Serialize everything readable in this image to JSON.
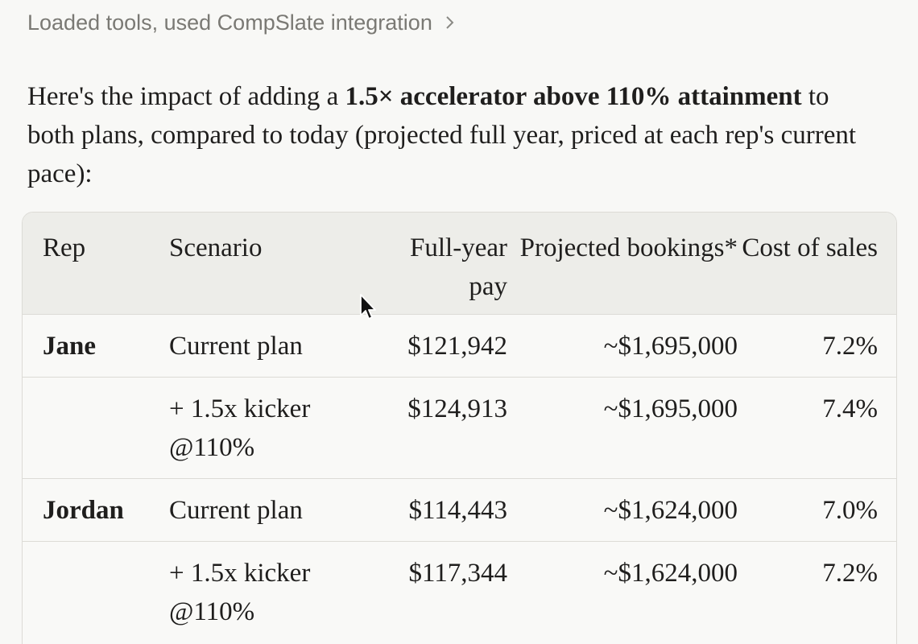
{
  "tools_line": {
    "label": "Loaded tools, used CompSlate integration",
    "chevron_icon": "chevron-right-icon"
  },
  "intro": {
    "prefix": "Here's the impact of adding a ",
    "bold": "1.5× accelerator above 110% attainment",
    "suffix": " to both plans, compared to today (projected full year, priced at each rep's current pace):"
  },
  "table": {
    "headers": {
      "rep": "Rep",
      "scenario": "Scenario",
      "full_year_pay": "Full-year pay",
      "projected_bookings": "Projected bookings*",
      "cost_of_sales": "Cost of sales"
    },
    "rows": [
      {
        "rep": "Jane",
        "scenario": "Current plan",
        "pay": "$121,942",
        "bookings": "~$1,695,000",
        "cost": "7.2%"
      },
      {
        "rep": "",
        "scenario": "+ 1.5x kicker @110%",
        "pay": "$124,913",
        "bookings": "~$1,695,000",
        "cost": "7.4%"
      },
      {
        "rep": "Jordan",
        "scenario": "Current plan",
        "pay": "$114,443",
        "bookings": "~$1,624,000",
        "cost": "7.0%"
      },
      {
        "rep": "",
        "scenario": "+ 1.5x kicker @110%",
        "pay": "$117,344",
        "bookings": "~$1,624,000",
        "cost": "7.2%"
      }
    ]
  },
  "cursor_icon": "mouse-pointer-icon"
}
